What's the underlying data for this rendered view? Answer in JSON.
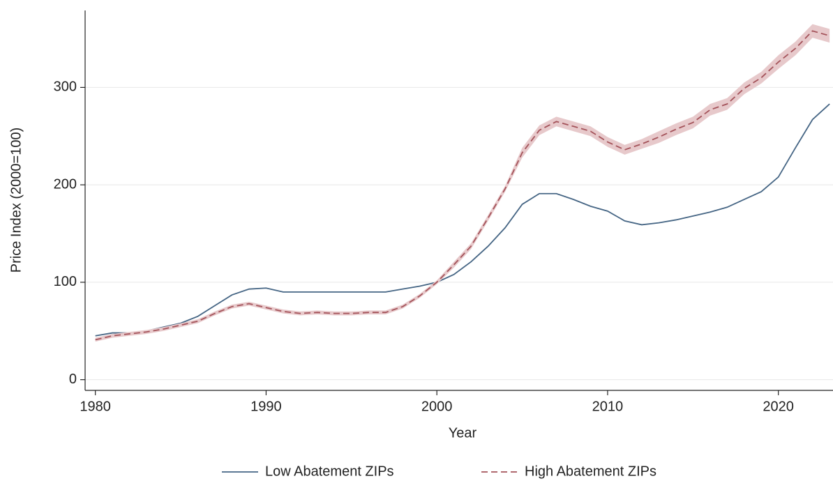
{
  "chart_data": {
    "type": "line",
    "xlabel": "Year",
    "ylabel": "Price Index (2000=100)",
    "x": [
      1980,
      1981,
      1982,
      1983,
      1984,
      1985,
      1986,
      1987,
      1988,
      1989,
      1990,
      1991,
      1992,
      1993,
      1994,
      1995,
      1996,
      1997,
      1998,
      1999,
      2000,
      2001,
      2002,
      2003,
      2004,
      2005,
      2006,
      2007,
      2008,
      2009,
      2010,
      2011,
      2012,
      2013,
      2014,
      2015,
      2016,
      2017,
      2018,
      2019,
      2020,
      2021,
      2022,
      2023
    ],
    "series": [
      {
        "name": "Low Abatement ZIPs",
        "color": "#456584",
        "dash": false,
        "values": [
          45,
          48,
          48,
          50,
          54,
          58,
          65,
          76,
          87,
          93,
          94,
          90,
          90,
          90,
          90,
          90,
          90,
          90,
          93,
          96,
          100,
          108,
          121,
          137,
          156,
          180,
          191,
          191,
          185,
          178,
          173,
          163,
          159,
          161,
          164,
          168,
          172,
          177,
          185,
          193,
          208,
          238,
          267,
          283
        ]
      },
      {
        "name": "High Abatement ZIPs",
        "color": "#a4535a",
        "dash": true,
        "band_color": "#e7c9cb",
        "values": [
          41,
          45,
          47,
          49,
          52,
          56,
          60,
          68,
          75,
          78,
          74,
          70,
          68,
          69,
          68,
          68,
          69,
          69,
          75,
          86,
          100,
          118,
          137,
          166,
          196,
          233,
          256,
          265,
          260,
          255,
          244,
          236,
          242,
          249,
          257,
          264,
          277,
          283,
          299,
          310,
          326,
          340,
          358,
          353
        ],
        "upper": [
          43,
          47,
          49,
          51,
          54,
          58,
          62,
          70,
          77,
          80,
          76,
          72,
          70,
          71,
          70,
          70,
          71,
          71,
          77,
          88,
          102,
          121,
          140,
          169,
          199,
          238,
          261,
          270,
          265,
          260,
          249,
          241,
          247,
          255,
          263,
          270,
          283,
          289,
          305,
          316,
          333,
          347,
          365,
          360
        ],
        "lower": [
          39,
          43,
          45,
          47,
          50,
          54,
          58,
          66,
          73,
          76,
          72,
          68,
          66,
          67,
          66,
          66,
          67,
          67,
          73,
          84,
          98,
          115,
          134,
          163,
          193,
          228,
          251,
          260,
          255,
          250,
          239,
          231,
          237,
          243,
          251,
          258,
          271,
          277,
          293,
          304,
          319,
          333,
          351,
          346
        ]
      }
    ],
    "xlim": [
      1979.4,
      2023.2
    ],
    "xticks": [
      1980,
      1990,
      2000,
      2010,
      2020
    ],
    "ylim": [
      -11,
      379
    ],
    "yticks": [
      0,
      100,
      200,
      300
    ],
    "grid": true,
    "legend": "bottom"
  }
}
